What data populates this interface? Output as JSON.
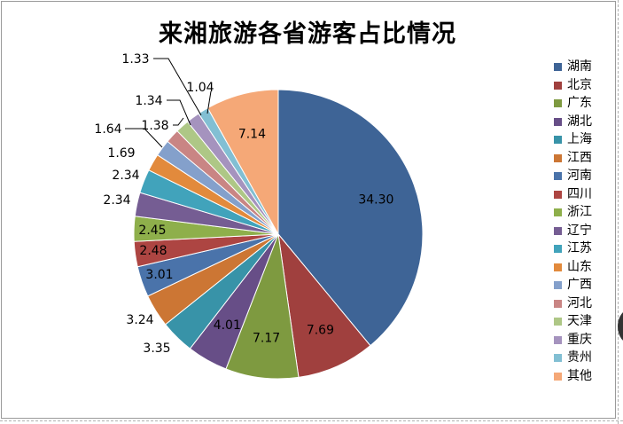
{
  "chart_data": {
    "type": "pie",
    "title": "来湘旅游各省游客占比情况",
    "legend_position": "right",
    "categories": [
      "湖南",
      "北京",
      "广东",
      "湖北",
      "上海",
      "江西",
      "河南",
      "四川",
      "浙江",
      "辽宁",
      "江苏",
      "山东",
      "广西",
      "河北",
      "天津",
      "重庆",
      "贵州",
      "其他"
    ],
    "values": [
      34.3,
      7.69,
      7.17,
      4.01,
      3.35,
      3.24,
      3.01,
      2.48,
      2.45,
      2.34,
      2.34,
      1.69,
      1.64,
      1.38,
      1.34,
      1.33,
      1.04,
      7.14
    ],
    "data_labels": [
      "34.30",
      "7.69",
      "7.17",
      "4.01",
      "3.35",
      "3.24",
      "3.01",
      "2.48",
      "2.45",
      "2.34",
      "2.34",
      "1.69",
      "1.64",
      "1.38",
      "1.34",
      "1.33",
      "1.04",
      "7.14"
    ],
    "colors": [
      "#3E6496",
      "#A0403E",
      "#7E9A40",
      "#674E87",
      "#3893A8",
      "#CC7634",
      "#4A73AA",
      "#AD4542",
      "#8EAF4B",
      "#755D93",
      "#41A3BB",
      "#E28A3C",
      "#84A0CB",
      "#C98584",
      "#AEC786",
      "#A593BE",
      "#82BFD3",
      "#F5A877"
    ]
  }
}
